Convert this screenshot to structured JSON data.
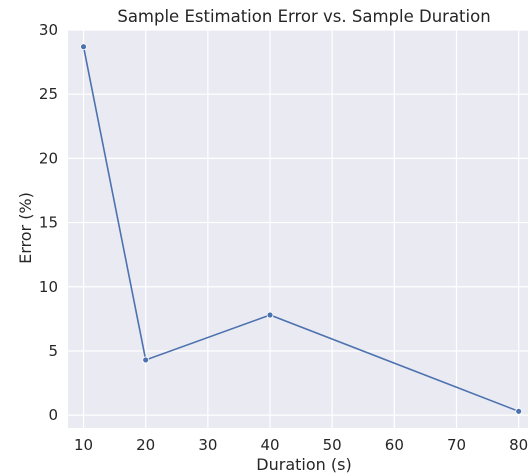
{
  "chart_data": {
    "type": "line",
    "title": "Sample Estimation Error vs. Sample Duration",
    "xlabel": "Duration (s)",
    "ylabel": "Error (%)",
    "x_ticks": [
      10,
      20,
      30,
      40,
      50,
      60,
      70,
      80
    ],
    "y_ticks": [
      0,
      5,
      10,
      15,
      20,
      25,
      30
    ],
    "xlim": [
      7.5,
      81.5
    ],
    "ylim": [
      -1,
      30
    ],
    "grid": true,
    "series": [
      {
        "x": [
          10,
          20,
          40,
          80
        ],
        "values": [
          28.7,
          4.3,
          7.8,
          0.3
        ],
        "marker": "circle"
      }
    ],
    "colors": {
      "line": "#4c72b0",
      "plot_background": "#eaeaf2",
      "grid": "#ffffff",
      "text": "#262626"
    }
  }
}
